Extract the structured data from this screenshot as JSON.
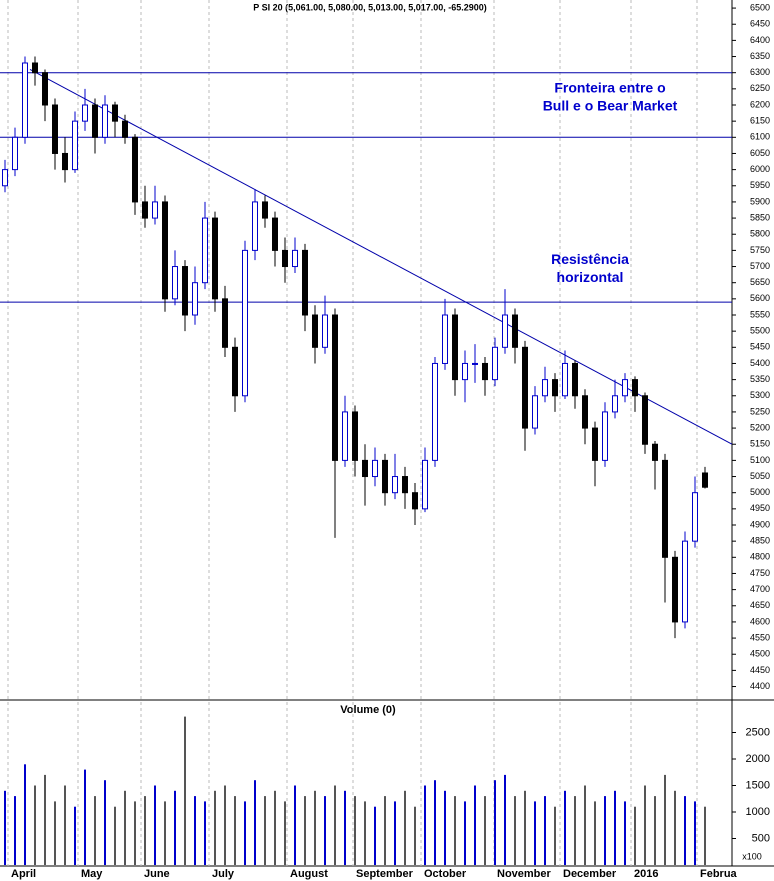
{
  "chart_data": {
    "type": "candlestick",
    "title": "P SI 20 (5,061.00, 5,080.00, 5,013.00, 5,017.00, -65.2900)",
    "up_color": "#0000cc",
    "down_color": "#000000",
    "line_color": "#0000aa",
    "open": [
      5950,
      6000,
      6100,
      6330,
      6300,
      6200,
      6050,
      6000,
      6150,
      6200,
      6100,
      6200,
      6150,
      6100,
      5900,
      5850,
      5900,
      5600,
      5700,
      5550,
      5650,
      5850,
      5600,
      5450,
      5300,
      5750,
      5900,
      5850,
      5750,
      5700,
      5750,
      5550,
      5450,
      5550,
      5100,
      5250,
      5100,
      5050,
      5100,
      5000,
      5050,
      5000,
      4950,
      5100,
      5400,
      5550,
      5350,
      5400,
      5400,
      5350,
      5450,
      5550,
      5450,
      5200,
      5300,
      5350,
      5300,
      5400,
      5300,
      5200,
      5100,
      5250,
      5300,
      5350,
      5300,
      5150,
      5100,
      4800,
      4600,
      4850,
      5061
    ],
    "high": [
      6030,
      6130,
      6350,
      6350,
      6310,
      6220,
      6100,
      6180,
      6250,
      6220,
      6230,
      6210,
      6170,
      6110,
      5950,
      5950,
      5920,
      5750,
      5720,
      5700,
      5900,
      5870,
      5640,
      5480,
      5780,
      5940,
      5920,
      5870,
      5790,
      5790,
      5770,
      5580,
      5610,
      5570,
      5300,
      5270,
      5150,
      5140,
      5120,
      5120,
      5080,
      5030,
      5140,
      5420,
      5600,
      5570,
      5440,
      5460,
      5420,
      5480,
      5630,
      5570,
      5470,
      5330,
      5390,
      5370,
      5440,
      5410,
      5320,
      5220,
      5280,
      5350,
      5370,
      5360,
      5310,
      5160,
      5120,
      4820,
      4880,
      5050,
      5080
    ],
    "low": [
      5930,
      5980,
      6080,
      6260,
      6150,
      6000,
      5960,
      5990,
      6120,
      6050,
      6080,
      6100,
      6080,
      5860,
      5820,
      5830,
      5560,
      5580,
      5500,
      5520,
      5630,
      5560,
      5420,
      5250,
      5280,
      5720,
      5820,
      5700,
      5650,
      5680,
      5500,
      5400,
      5430,
      4860,
      5080,
      5050,
      4960,
      5020,
      4960,
      4980,
      4950,
      4900,
      4940,
      5080,
      5380,
      5300,
      5280,
      5340,
      5300,
      5330,
      5430,
      5400,
      5130,
      5180,
      5280,
      5250,
      5290,
      5260,
      5150,
      5020,
      5080,
      5230,
      5280,
      5250,
      5120,
      5010,
      4660,
      4550,
      4580,
      4830,
      5013
    ],
    "close": [
      6000,
      6100,
      6330,
      6300,
      6200,
      6050,
      6000,
      6150,
      6200,
      6100,
      6200,
      6150,
      6100,
      5900,
      5850,
      5900,
      5600,
      5700,
      5550,
      5650,
      5850,
      5600,
      5450,
      5300,
      5750,
      5900,
      5850,
      5750,
      5700,
      5750,
      5550,
      5450,
      5550,
      5100,
      5250,
      5100,
      5050,
      5100,
      5000,
      5050,
      5000,
      4950,
      5100,
      5400,
      5550,
      5350,
      5400,
      5400,
      5350,
      5450,
      5550,
      5450,
      5200,
      5300,
      5350,
      5300,
      5400,
      5300,
      5200,
      5100,
      5250,
      5300,
      5350,
      5300,
      5150,
      5100,
      4800,
      4600,
      4850,
      5000,
      5017
    ],
    "ylim": [
      4380,
      6525
    ],
    "yticks": [
      4400,
      4450,
      4500,
      4550,
      4600,
      4650,
      4700,
      4750,
      4800,
      4850,
      4900,
      4950,
      5000,
      5050,
      5100,
      5150,
      5200,
      5250,
      5300,
      5350,
      5400,
      5450,
      5500,
      5550,
      5600,
      5650,
      5700,
      5750,
      5800,
      5850,
      5900,
      5950,
      6000,
      6050,
      6100,
      6150,
      6200,
      6250,
      6300,
      6350,
      6400,
      6450,
      6500
    ],
    "xlim": [
      0,
      73.2
    ],
    "xticks": [
      {
        "value": 0.8,
        "label": "April"
      },
      {
        "value": 7.8,
        "label": "May"
      },
      {
        "value": 14.1,
        "label": "June"
      },
      {
        "value": 20.9,
        "label": "July"
      },
      {
        "value": 28.7,
        "label": "August"
      },
      {
        "value": 35.3,
        "label": "September"
      },
      {
        "value": 42.1,
        "label": "October"
      },
      {
        "value": 49.4,
        "label": "November"
      },
      {
        "value": 56,
        "label": "December"
      },
      {
        "value": 63.1,
        "label": "2016"
      },
      {
        "value": 69.7,
        "label": "Februa"
      }
    ],
    "hlines": [
      6300,
      6100,
      5590
    ],
    "trendline": {
      "x": [
        3,
        73.2
      ],
      "y": [
        6310,
        5150
      ]
    },
    "annotations": [
      {
        "lines": [
          "Fronteira entre o",
          "Bull e o Bear Market"
        ],
        "x": 61,
        "y": 6250
      },
      {
        "lines": [
          "Resistência",
          "horizontal"
        ],
        "x": 59,
        "y": 5720
      }
    ],
    "volume": {
      "title": "Volume (0)",
      "unit_label": "x100",
      "ylim": [
        0,
        3000
      ],
      "yticks": [
        500,
        1000,
        1500,
        2000,
        2500
      ],
      "values": [
        1400,
        1300,
        1900,
        1500,
        1700,
        1200,
        1500,
        1100,
        1800,
        1300,
        1600,
        1100,
        1400,
        1200,
        1300,
        1500,
        1200,
        1400,
        2800,
        1300,
        1200,
        1400,
        1500,
        1300,
        1200,
        1600,
        1300,
        1400,
        1200,
        1500,
        1300,
        1400,
        1300,
        1500,
        1400,
        1300,
        1200,
        1100,
        1300,
        1200,
        1400,
        1100,
        1500,
        1600,
        1400,
        1300,
        1200,
        1500,
        1300,
        1600,
        1700,
        1300,
        1400,
        1200,
        1300,
        1100,
        1400,
        1300,
        1500,
        1200,
        1300,
        1400,
        1200,
        1100,
        1500,
        1300,
        1700,
        1400,
        1300,
        1200,
        1100
      ]
    }
  }
}
